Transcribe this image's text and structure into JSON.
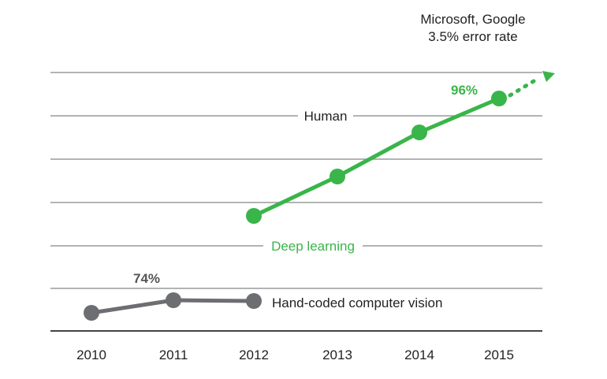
{
  "chart_data": {
    "type": "line",
    "x": [
      2010,
      2011,
      2012,
      2013,
      2014,
      2015
    ],
    "xtick_labels": [
      "2010",
      "2011",
      "2012",
      "2013",
      "2014",
      "2015"
    ],
    "grid": true,
    "series": [
      {
        "name": "Hand-coded computer vision",
        "color": "#6d6e71",
        "x": [
          2010,
          2011,
          2012
        ],
        "values": [
          72.5,
          74,
          73.8
        ]
      },
      {
        "name": "Deep learning",
        "color": "#39b54a",
        "x": [
          2012,
          2013,
          2014,
          2015
        ],
        "values": [
          84,
          89,
          93,
          96
        ],
        "projection_to": [
          2015.7,
          99.5
        ]
      }
    ],
    "reference_lines": [
      {
        "label": "Human",
        "y": 94.9
      }
    ],
    "point_labels": [
      {
        "series": 0,
        "index": 1,
        "text": "74%"
      },
      {
        "series": 1,
        "index": 3,
        "text": "96%"
      }
    ],
    "series_labels": [
      {
        "series": 1,
        "text": "Deep learning"
      },
      {
        "series": 0,
        "text": "Hand-coded computer vision"
      }
    ],
    "annotation": {
      "line1": "Microsoft, Google",
      "line2": "3.5% error rate"
    },
    "ylim": [
      71,
      100
    ]
  },
  "colors": {
    "gray": "#6d6e71",
    "green": "#39b54a",
    "grid": "#9a9a9a",
    "text": "#222222"
  }
}
